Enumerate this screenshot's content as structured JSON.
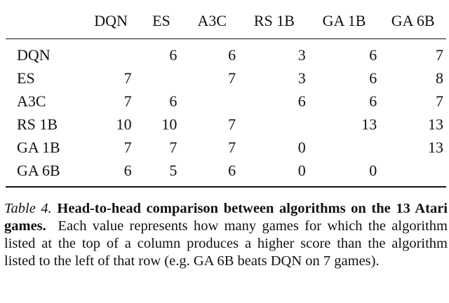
{
  "table": {
    "columns": [
      "DQN",
      "ES",
      "A3C",
      "RS 1B",
      "GA 1B",
      "GA 6B"
    ],
    "rows": [
      {
        "label": "DQN",
        "cells": [
          "",
          "6",
          "6",
          "3",
          "6",
          "7"
        ]
      },
      {
        "label": "ES",
        "cells": [
          "7",
          "",
          "7",
          "3",
          "6",
          "8"
        ]
      },
      {
        "label": "A3C",
        "cells": [
          "7",
          "6",
          "",
          "6",
          "6",
          "7"
        ]
      },
      {
        "label": "RS 1B",
        "cells": [
          "10",
          "10",
          "7",
          "",
          "13",
          "13"
        ]
      },
      {
        "label": "GA 1B",
        "cells": [
          "7",
          "7",
          "7",
          "0",
          "",
          "13"
        ]
      },
      {
        "label": "GA 6B",
        "cells": [
          "6",
          "5",
          "6",
          "0",
          "0",
          ""
        ]
      }
    ]
  },
  "caption": {
    "label": "Table 4.",
    "bold": "Head-to-head comparison between algorithms on the 13 Atari games.",
    "body": "Each value represents how many games for which the algorithm listed at the top of a column produces a higher score than the algorithm listed to the left of that row (e.g. GA 6B beats DQN on 7 games)."
  }
}
